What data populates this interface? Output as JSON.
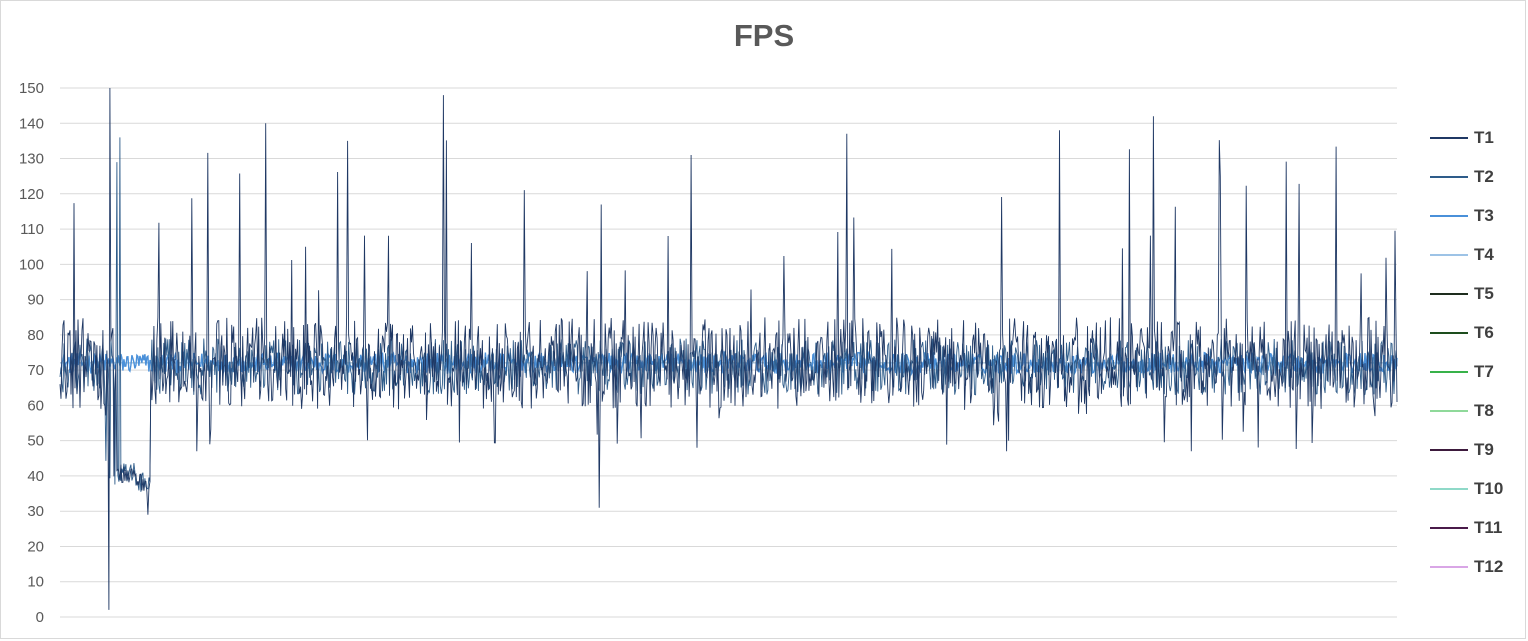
{
  "chart_data": {
    "type": "line",
    "title": "FPS",
    "xlabel": "",
    "ylabel": "",
    "ylim": [
      0,
      150
    ],
    "y_ticks": [
      "0",
      "10",
      "20",
      "30",
      "40",
      "50",
      "60",
      "70",
      "80",
      "90",
      "100",
      "110",
      "120",
      "130",
      "140",
      "150"
    ],
    "grid": true,
    "legend_position": "right",
    "x_count": 1340,
    "series": [
      {
        "name": "T1",
        "color": "#1f3864",
        "mean": 72,
        "spread": 13
      },
      {
        "name": "T2",
        "color": "#2e5c8a",
        "mean": 71,
        "spread": 8
      },
      {
        "name": "T3",
        "color": "#4a90d9",
        "mean": 72,
        "spread": 3
      },
      {
        "name": "T4",
        "color": "#9dc3e6",
        "mean": 72,
        "spread": 0
      },
      {
        "name": "T5",
        "color": "#1e2d1e",
        "mean": 72,
        "spread": 0
      },
      {
        "name": "T6",
        "color": "#1d4d1d",
        "mean": 72,
        "spread": 0
      },
      {
        "name": "T7",
        "color": "#38b24a",
        "mean": 72,
        "spread": 0
      },
      {
        "name": "T8",
        "color": "#8fd99a",
        "mean": 72,
        "spread": 0
      },
      {
        "name": "T9",
        "color": "#3d1a3d",
        "mean": 72,
        "spread": 0
      },
      {
        "name": "T10",
        "color": "#8fd9c8",
        "mean": 72,
        "spread": 0
      },
      {
        "name": "T11",
        "color": "#4a1a4a",
        "mean": 72,
        "spread": 0
      },
      {
        "name": "T12",
        "color": "#d9a6e6",
        "mean": 72,
        "spread": 0
      }
    ],
    "notable_values": {
      "max_spike": 150,
      "min_dip": 2,
      "low_segment_min": 29,
      "low_spike_mid": 31
    }
  }
}
